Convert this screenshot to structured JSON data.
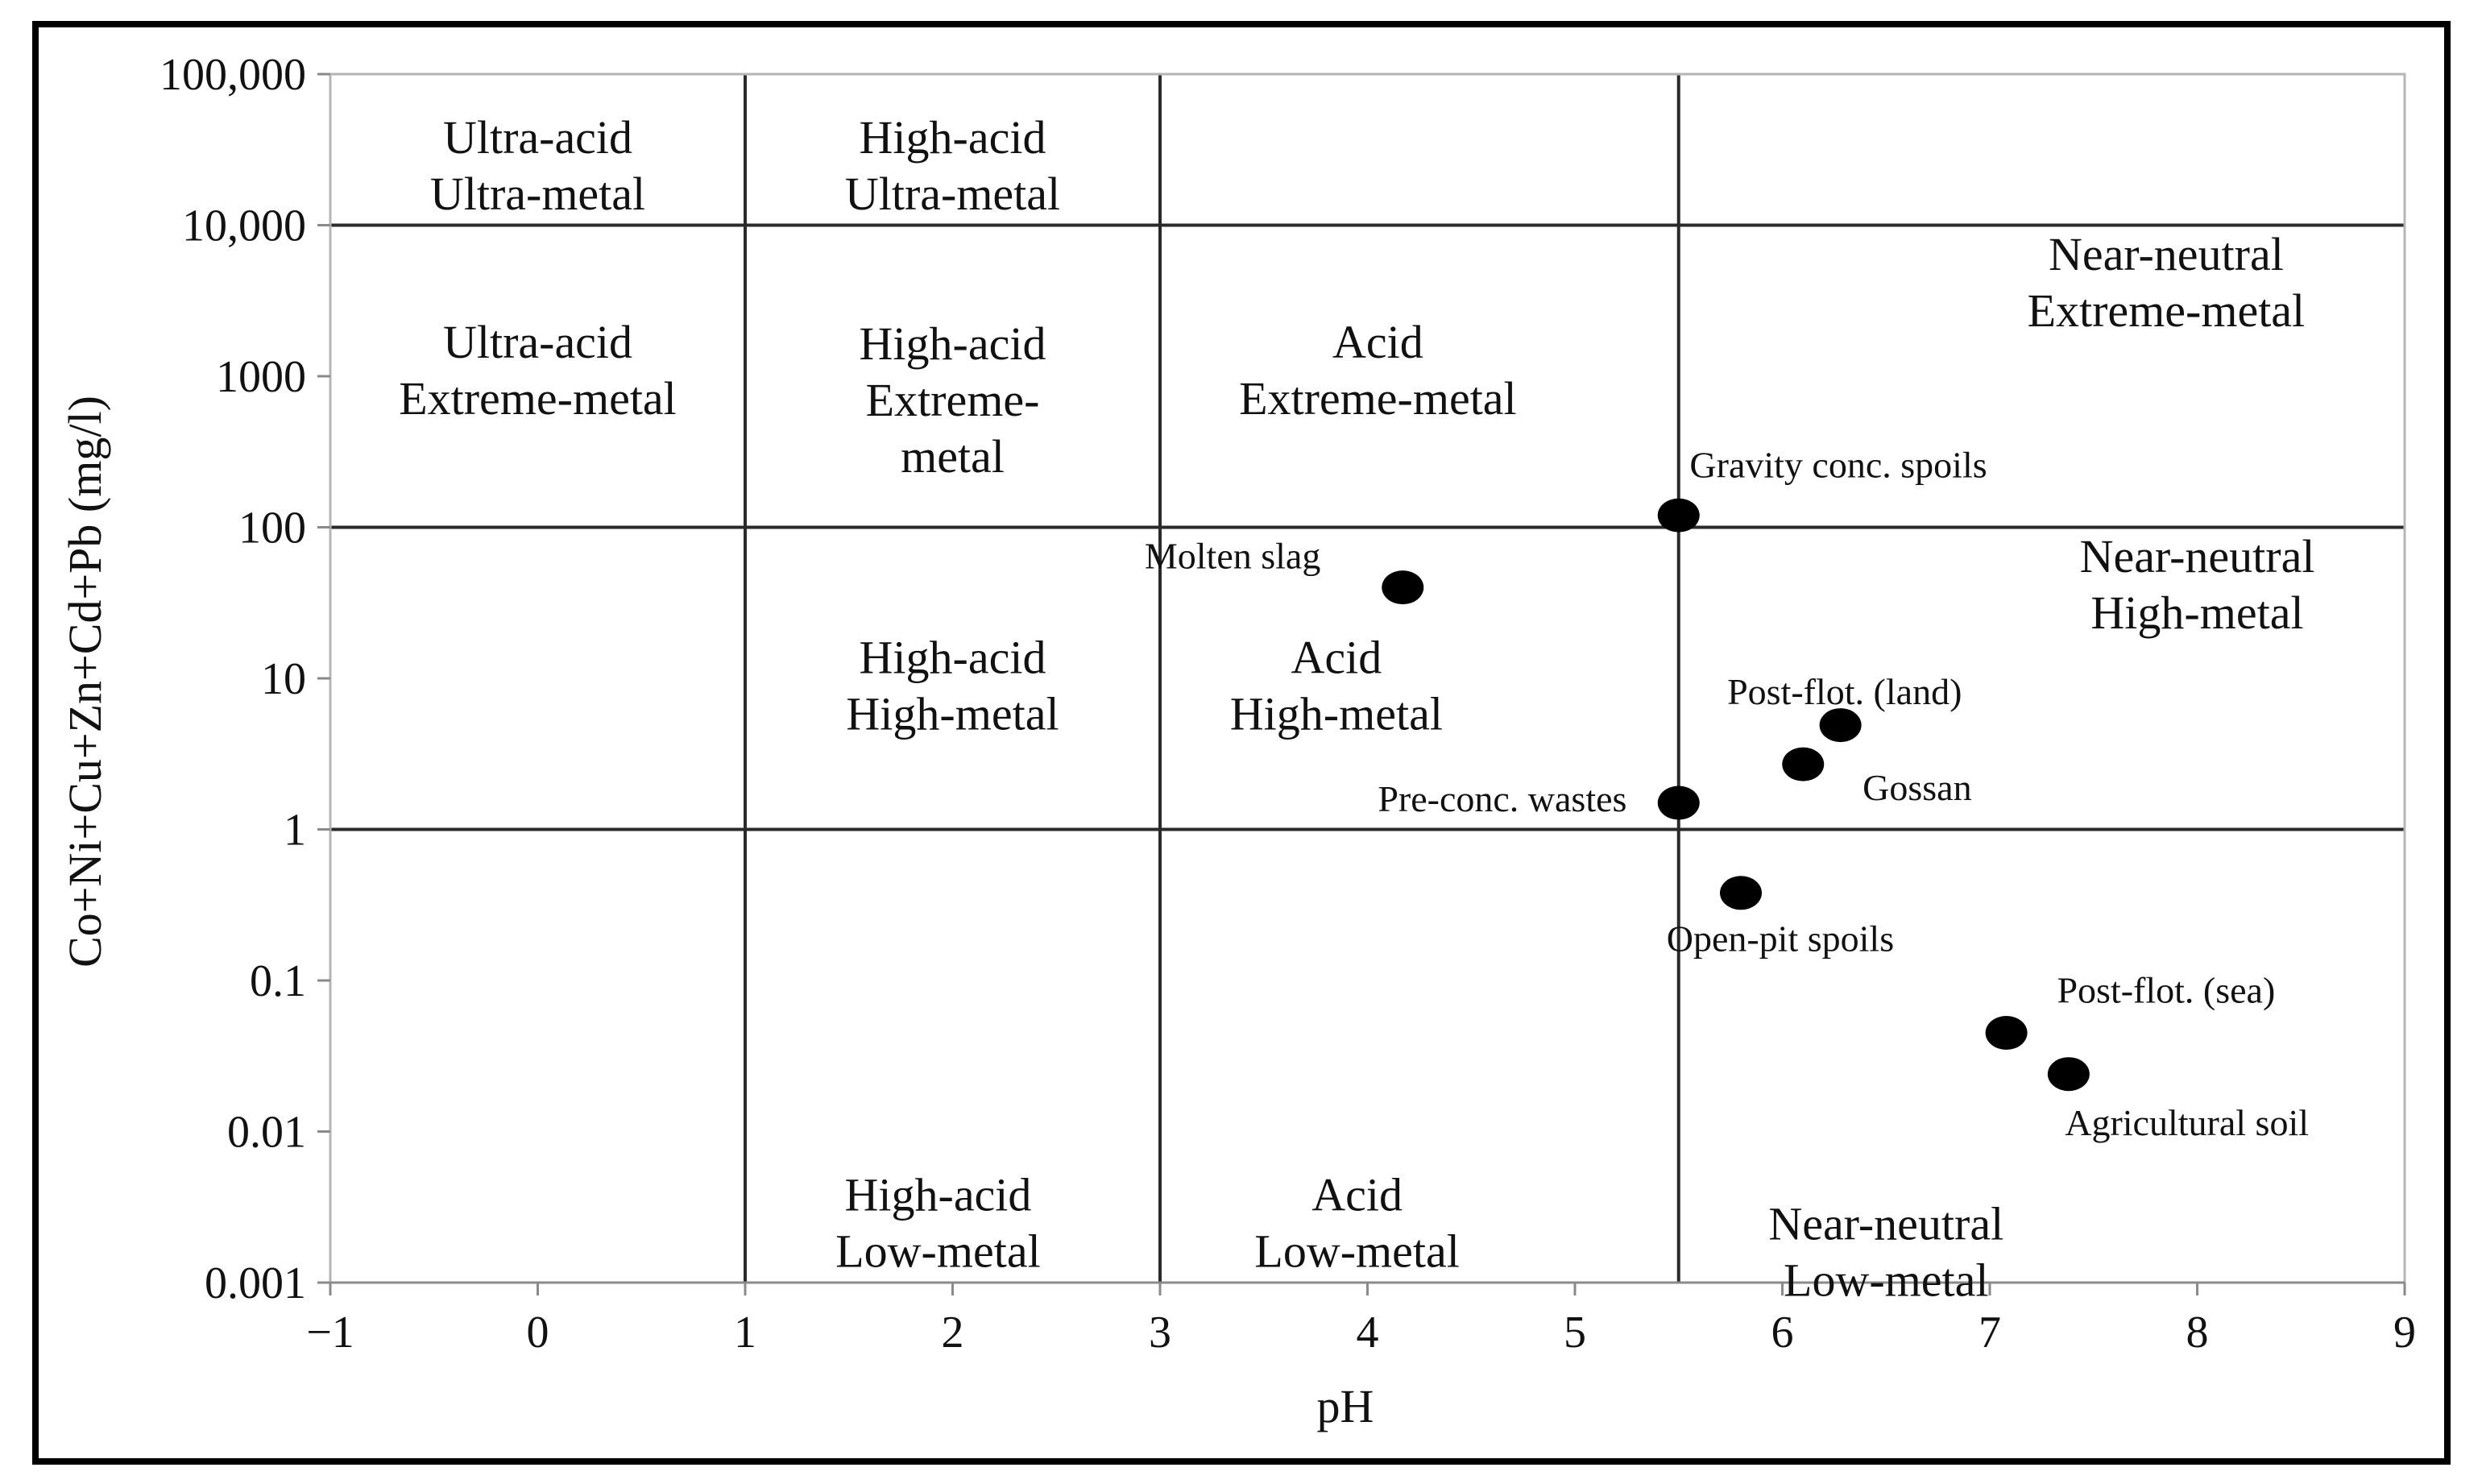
{
  "chart_data": {
    "type": "scatter",
    "xlabel": "pH",
    "ylabel": "Co+Ni+Cu+Zn+Cd+Pb (mg/l)",
    "xlim": [
      -1,
      9
    ],
    "ylim": [
      0.001,
      100000
    ],
    "y_scale": "log",
    "x_ticks": [
      -1,
      0,
      1,
      2,
      3,
      4,
      5,
      6,
      7,
      8,
      9
    ],
    "x_tick_labels": [
      "−1",
      "0",
      "1",
      "2",
      "3",
      "4",
      "5",
      "6",
      "7",
      "8",
      "9"
    ],
    "y_ticks": [
      0.001,
      0.01,
      0.1,
      1,
      10,
      100,
      1000,
      10000,
      100000
    ],
    "y_tick_labels": [
      "0.001",
      "0.01",
      "0.1",
      "1",
      "10",
      "100",
      "1000",
      "10,000",
      "100,000"
    ],
    "divider_x": [
      1,
      3,
      5.5
    ],
    "divider_y": [
      1,
      100,
      10000
    ],
    "marker_color": "#000000",
    "regions": [
      {
        "lines": [
          "Ultra-acid",
          "Ultra-metal"
        ],
        "x": 0,
        "y": 25000
      },
      {
        "lines": [
          "High-acid",
          "Ultra-metal"
        ],
        "x": 2,
        "y": 25000
      },
      {
        "lines": [
          "Ultra-acid",
          "Extreme-metal"
        ],
        "x": 0,
        "y": 1100
      },
      {
        "lines": [
          "High-acid",
          "Extreme-",
          "metal"
        ],
        "x": 2,
        "y": 700
      },
      {
        "lines": [
          "Acid",
          "Extreme-metal"
        ],
        "x": 4.05,
        "y": 1100
      },
      {
        "lines": [
          "Near-neutral",
          "Extreme-metal"
        ],
        "x": 7.85,
        "y": 4200
      },
      {
        "lines": [
          "High-acid",
          "High-metal"
        ],
        "x": 2,
        "y": 9
      },
      {
        "lines": [
          "Acid",
          "High-metal"
        ],
        "x": 3.85,
        "y": 9
      },
      {
        "lines": [
          "Near-neutral",
          "High-metal"
        ],
        "x": 8,
        "y": 42
      },
      {
        "lines": [
          "High-acid",
          "Low-metal"
        ],
        "x": 1.93,
        "y": 0.0025
      },
      {
        "lines": [
          "Acid",
          "Low-metal"
        ],
        "x": 3.95,
        "y": 0.0025
      },
      {
        "lines": [
          "Near-neutral",
          "Low-metal"
        ],
        "x": 6.5,
        "y": 0.0016
      }
    ],
    "points": [
      {
        "name": "Gravity conc. spoils",
        "x": 5.5,
        "y": 120,
        "lx": 6.27,
        "ly": 260
      },
      {
        "name": "Molten slag",
        "x": 4.17,
        "y": 40,
        "lx": 3.35,
        "ly": 65
      },
      {
        "name": "Post-flot. (land)",
        "x": 6.28,
        "y": 4.9,
        "lx": 6.3,
        "ly": 8.2
      },
      {
        "name": "Gossan",
        "x": 6.1,
        "y": 2.7,
        "lx": 6.65,
        "ly": 1.9
      },
      {
        "name": "Pre-conc. wastes",
        "x": 5.5,
        "y": 1.5,
        "lx": 4.65,
        "ly": 1.6
      },
      {
        "name": "Open-pit spoils",
        "x": 5.8,
        "y": 0.38,
        "lx": 5.99,
        "ly": 0.19
      },
      {
        "name": "Post-flot. (sea)",
        "x": 7.08,
        "y": 0.045,
        "lx": 7.85,
        "ly": 0.087
      },
      {
        "name": "Agricultural soil",
        "x": 7.38,
        "y": 0.024,
        "lx": 7.95,
        "ly": 0.0115
      }
    ]
  }
}
